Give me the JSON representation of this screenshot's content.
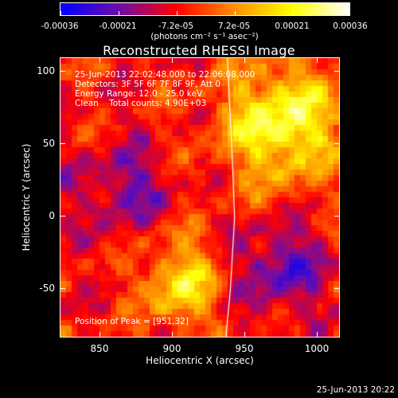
{
  "colorbar": {
    "tick_labels": [
      "-0.00036",
      "-0.00021",
      "-7.2e-05",
      "7.2e-05",
      "0.00021",
      "0.00036"
    ],
    "units": "(photons cm⁻² s⁻¹ asec⁻²)",
    "range": [
      -0.00036,
      0.00036
    ],
    "colors": [
      "#0000ff",
      "#6a0dad",
      "#ff0000",
      "#ff8c00",
      "#ffff00",
      "#ffffff"
    ]
  },
  "title": "Reconstructed RHESSI Image",
  "info": {
    "time_range": "25-Jun-2013 22:02:48.000 to 22:06:08.000",
    "detectors": "Detectors: 3F 5F 6F 7F 8F 9F, Att 0",
    "energy": "Energy Range: 12.0 - 25.0 keV",
    "method_counts": "Clean    Total counts: 4.90E+03",
    "peak": "Position of Peak = [951,32]"
  },
  "axes": {
    "xlabel": "Heliocentric X (arcsec)",
    "ylabel": "Heliocentric Y (arcsec)",
    "xticks": [
      "850",
      "900",
      "950",
      "1000"
    ],
    "yticks": [
      "100",
      "50",
      "0",
      "-50"
    ],
    "xlim": [
      822,
      1014
    ],
    "ylim": [
      -82,
      110
    ]
  },
  "footer_date": "25-Jun-2013 20:22",
  "chart_data": {
    "type": "heatmap",
    "title": "Reconstructed RHESSI Image",
    "xlabel": "Heliocentric X (arcsec)",
    "ylabel": "Heliocentric Y (arcsec)",
    "xlim": [
      822,
      1014
    ],
    "ylim": [
      -82,
      110
    ],
    "limb_x_at_y": [
      [
        110,
        937
      ],
      [
        50,
        940
      ],
      [
        0,
        942
      ],
      [
        -50,
        939
      ],
      [
        -82,
        936
      ]
    ],
    "peak": [
      951,
      32
    ]
  }
}
